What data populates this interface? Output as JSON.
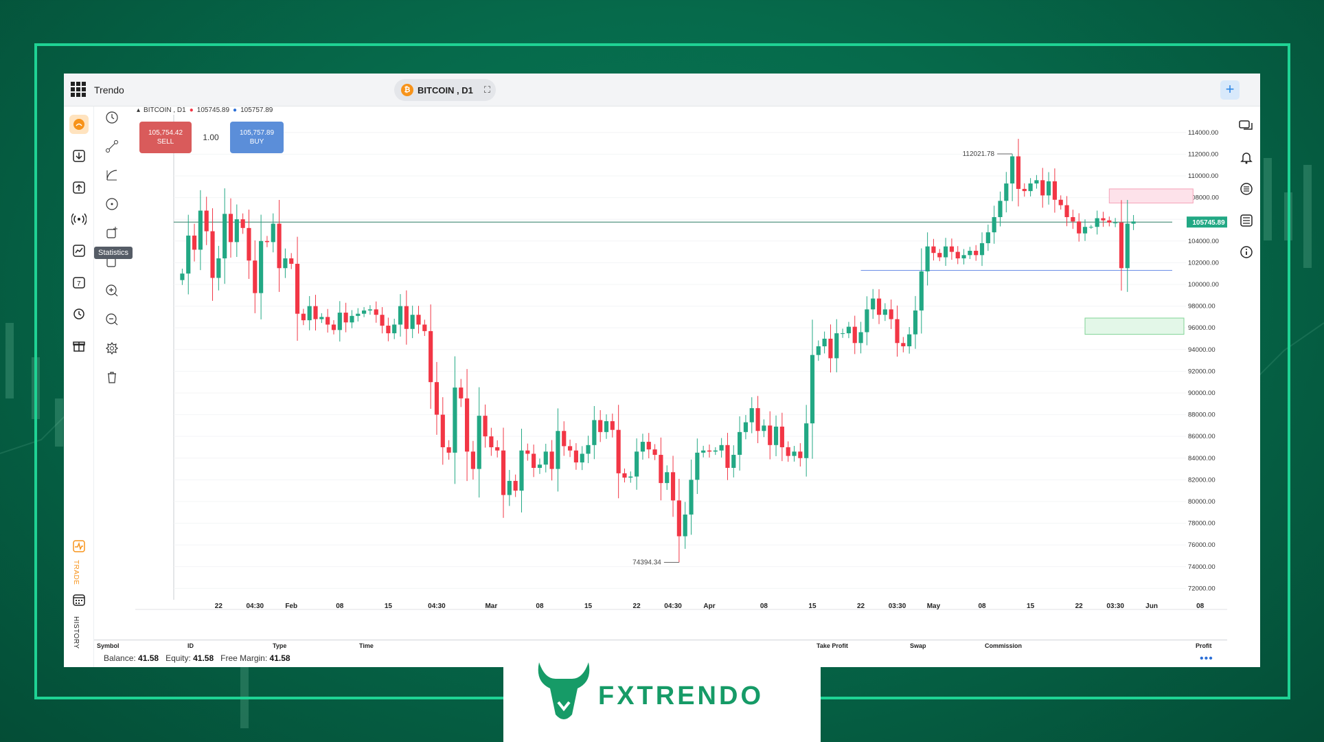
{
  "app": {
    "brand": "Trendo",
    "symbol_chip": "BITCOIN , D1",
    "plus_label": "+"
  },
  "chart_header": {
    "symbol": "BITCOIN , D1",
    "bid": "105745.89",
    "ask": "105757.89"
  },
  "trade_panel": {
    "sell_price": "105,754.42",
    "sell_label": "SELL",
    "qty": "1.00",
    "buy_price": "105,757.89",
    "buy_label": "BUY"
  },
  "tooltip": "Statistics",
  "left_sidebar": {
    "trade_label": "TRADE",
    "history_label": "HISTORY"
  },
  "icons": {
    "left": [
      "account-icon",
      "download-icon",
      "upload-icon",
      "signal-icon",
      "chart-line-icon",
      "calendar-7-icon",
      "history-icon",
      "gift-icon",
      "trade-icon",
      "history-calendar-icon"
    ],
    "tools": [
      "clock-icon",
      "trend-line-icon",
      "arc-icon",
      "crosshair-icon",
      "text-tool-icon",
      "shape-icon",
      "zoom-in-icon",
      "zoom-out-icon",
      "settings-icon",
      "trash-icon"
    ],
    "right": [
      "chat-icon",
      "bell-icon",
      "list-icon",
      "orders-icon",
      "info-icon"
    ]
  },
  "table_columns": [
    "Symbol",
    "ID",
    "Type",
    "Time",
    "Take Profit",
    "Swap",
    "Commission",
    "Profit"
  ],
  "account": {
    "balance_label": "Balance:",
    "balance": "41.58",
    "equity_label": "Equity:",
    "equity": "41.58",
    "free_margin_label": "Free Margin:",
    "free_margin": "41.58"
  },
  "logo": {
    "text": "FXTRENDO"
  },
  "colors": {
    "up": "#22a884",
    "down": "#f23645",
    "accent": "#1fd394",
    "brand_green": "#169b67"
  },
  "chart_data": {
    "type": "candlestick",
    "title": "BITCOIN , D1",
    "y_ticks": [
      114000,
      112000,
      110000,
      108000,
      106000,
      104000,
      102000,
      100000,
      98000,
      96000,
      94000,
      92000,
      90000,
      88000,
      86000,
      84000,
      82000,
      80000,
      78000,
      76000,
      74000,
      72000
    ],
    "y_tick_labels": [
      "114000.00",
      "112000.00",
      "110000.00",
      "108000.00",
      "",
      "104000.00",
      "102000.00",
      "100000.00",
      "98000.00",
      "96000.00",
      "94000.00",
      "92000.00",
      "90000.00",
      "88000.00",
      "86000.00",
      "84000.00",
      "82000.00",
      "80000.00",
      "78000.00",
      "76000.00",
      "74000.00",
      "72000.00"
    ],
    "ylim": [
      71200,
      115000
    ],
    "x_tick_labels": [
      "22",
      "04:30",
      "Feb",
      "08",
      "15",
      "04:30",
      "Mar",
      "08",
      "15",
      "22",
      "04:30",
      "Apr",
      "08",
      "15",
      "22",
      "03:30",
      "May",
      "08",
      "15",
      "22",
      "03:30",
      "Jun",
      "08"
    ],
    "x_tick_candle_index": [
      6,
      12,
      18,
      26,
      34,
      42,
      51,
      59,
      67,
      75,
      81,
      87,
      96,
      104,
      112,
      118,
      124,
      132,
      140,
      148,
      154,
      160,
      168
    ],
    "current_price_label": "105745.89",
    "current_price": 105745.89,
    "high_annotation": {
      "label": "112021.78",
      "value": 112021.78
    },
    "low_annotation": {
      "label": "74394.34",
      "value": 74394.34
    },
    "horizontal_line": 101300,
    "zones": [
      {
        "kind": "supply",
        "from": 107500,
        "to": 108800
      },
      {
        "kind": "demand",
        "from": 95400,
        "to": 96900
      }
    ],
    "closes": [
      101000,
      104500,
      103200,
      106800,
      104900,
      100600,
      102400,
      106500,
      103900,
      106000,
      105200,
      102200,
      99200,
      104000,
      103900,
      105600,
      101500,
      102400,
      101900,
      97300,
      96700,
      98000,
      96800,
      97000,
      96300,
      95800,
      97400,
      96500,
      97100,
      97300,
      97600,
      97700,
      97200,
      96200,
      95500,
      96300,
      98000,
      95900,
      97200,
      96300,
      95700,
      91000,
      88000,
      85000,
      84500,
      90500,
      89500,
      84600,
      83000,
      87900,
      86000,
      85000,
      84700,
      80600,
      81900,
      81000,
      84700,
      84400,
      83100,
      83400,
      84600,
      83000,
      86500,
      85100,
      84700,
      83600,
      84400,
      85200,
      87500,
      86400,
      87400,
      86600,
      82600,
      82200,
      82300,
      84600,
      85500,
      84800,
      84300,
      81700,
      82700,
      80100,
      76800,
      78800,
      82000,
      84500,
      84700,
      84600,
      84700,
      85200,
      83100,
      84300,
      86400,
      87300,
      88600,
      86500,
      87000,
      85200,
      86900,
      85000,
      84200,
      84600,
      84000,
      87200,
      93500,
      94300,
      95000,
      93200,
      95500,
      95500,
      96100,
      94600,
      95600,
      97700,
      98700,
      97200,
      97700,
      96800,
      94600,
      94300,
      95400,
      97600,
      101200,
      103500,
      102900,
      102500,
      103500,
      103000,
      102400,
      102700,
      103100,
      102700,
      103800,
      104800,
      106200,
      107700,
      109300,
      111800,
      108800,
      108600,
      109300,
      109600,
      108200,
      109500,
      107800,
      107300,
      106200,
      105800,
      104700,
      105300,
      105300,
      106100,
      105900,
      105700,
      105700,
      101500,
      105600,
      105800
    ],
    "note": "one daily candle per entry, Jan–Jun"
  }
}
